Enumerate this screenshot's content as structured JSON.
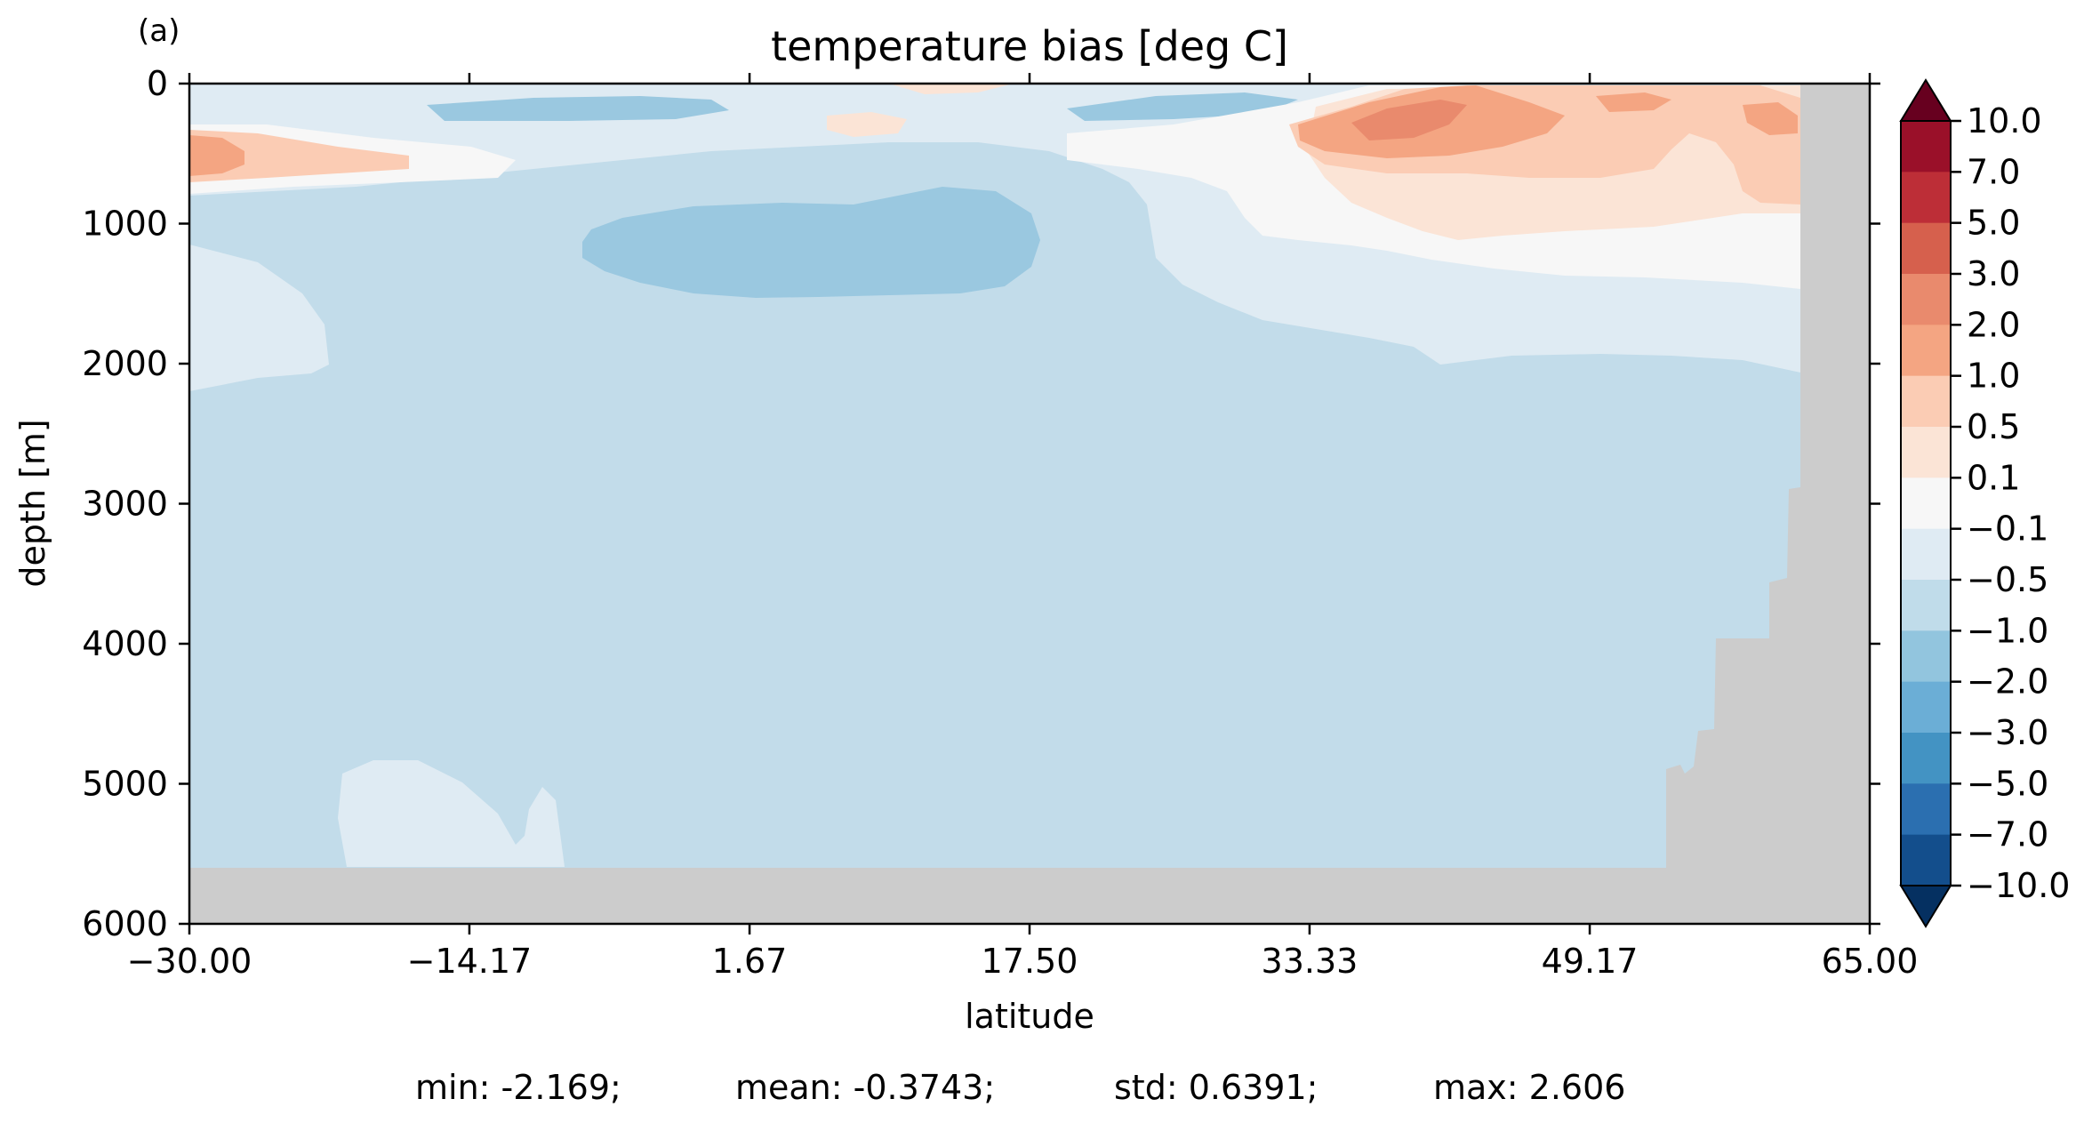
{
  "panel_label": "(a)",
  "stats": [
    "min: -2.169;",
    "mean: -0.3743;",
    "std: 0.6391;",
    "max: 2.606"
  ],
  "chart_data": {
    "type": "heatmap",
    "title": "temperature bias [deg C]",
    "xlabel": "latitude",
    "ylabel": "depth [m]",
    "xlim": [
      -30,
      65
    ],
    "ylim": [
      6000,
      0
    ],
    "y_inverted": true,
    "xticks": [
      "−30.00",
      "−14.17",
      "1.67",
      "17.50",
      "33.33",
      "49.17",
      "65.00"
    ],
    "xtick_values": [
      -30,
      -14.17,
      1.67,
      17.5,
      33.33,
      49.17,
      65
    ],
    "yticks": [
      "0",
      "1000",
      "2000",
      "3000",
      "4000",
      "5000",
      "6000"
    ],
    "ytick_values": [
      0,
      1000,
      2000,
      3000,
      4000,
      5000,
      6000
    ],
    "colorbar": {
      "labels": [
        "10.0",
        "7.0",
        "5.0",
        "3.0",
        "2.0",
        "1.0",
        "0.5",
        "0.1",
        "−0.1",
        "−0.5",
        "−1.0",
        "−2.0",
        "−3.0",
        "−5.0",
        "−7.0",
        "−10.0"
      ],
      "colors": [
        "#67001f",
        "#9a1029",
        "#bd2e37",
        "#d6604d",
        "#e98a6d",
        "#f4a582",
        "#fbccb4",
        "#fbe4d6",
        "#f7f7f7",
        "#dfebf3",
        "#c0dcea",
        "#92c5de",
        "#6baed6",
        "#4393c3",
        "#2b6fb0",
        "#134e8c",
        "#053061"
      ],
      "extend": "both"
    },
    "land_color": "#cccccc",
    "background_color": "#c2dcea"
  }
}
